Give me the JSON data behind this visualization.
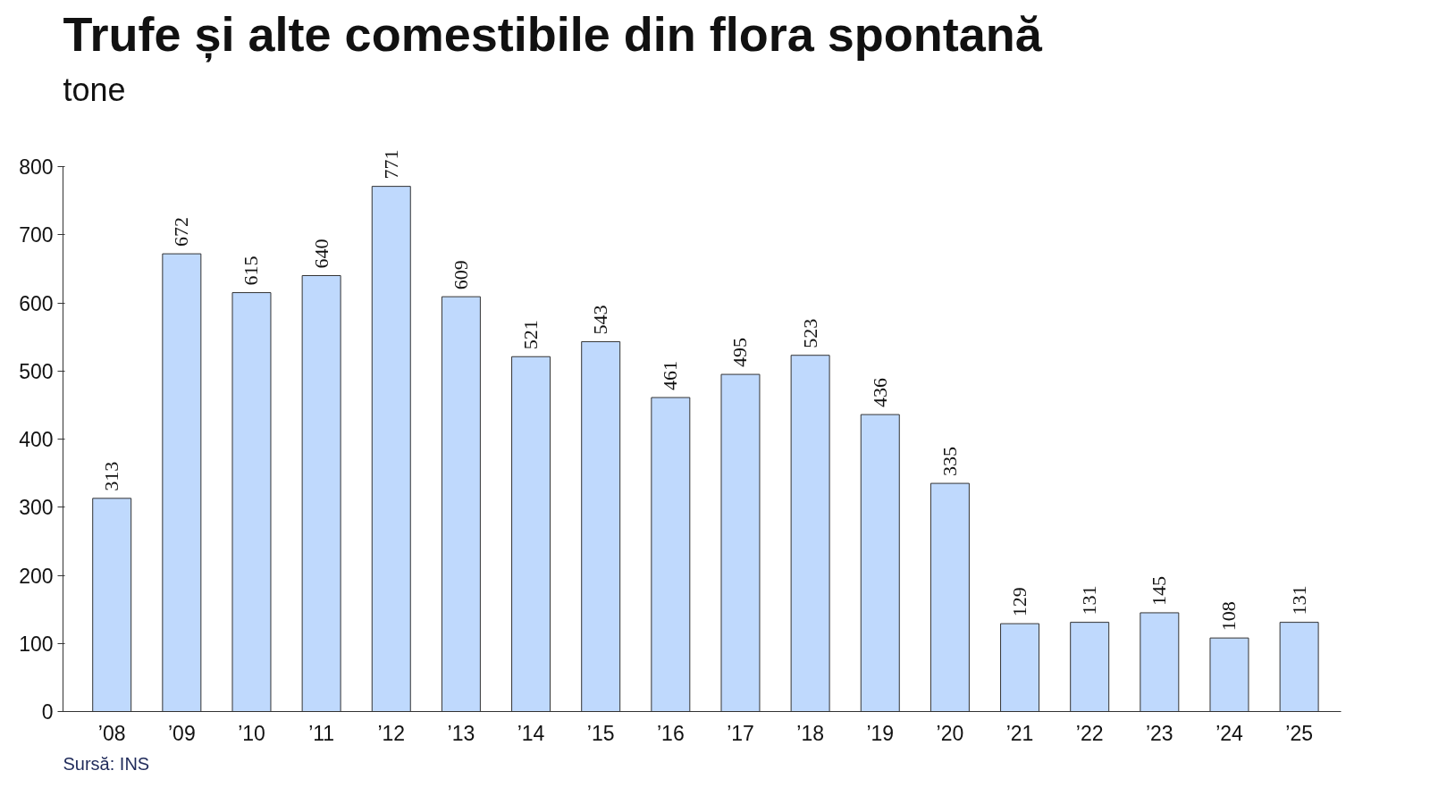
{
  "chart_data": {
    "type": "bar",
    "title": "Trufe și alte comestibile din flora spontană",
    "subtitle": "tone",
    "categories": [
      "’08",
      "’09",
      "’10",
      "’11",
      "’12",
      "’13",
      "’14",
      "’15",
      "’16",
      "’17",
      "’18",
      "’19",
      "’20",
      "’21",
      "’22",
      "’23",
      "’24",
      "’25"
    ],
    "values": [
      313,
      672,
      615,
      640,
      771,
      609,
      521,
      543,
      461,
      495,
      523,
      436,
      335,
      129,
      131,
      145,
      108,
      131
    ],
    "color": "#bfd9fd",
    "ylim": [
      0,
      800
    ],
    "yticks": [
      0,
      100,
      200,
      300,
      400,
      500,
      600,
      700,
      800
    ],
    "grid": false,
    "data_labels": true,
    "annotations": [
      "Sursă: INS"
    ]
  }
}
